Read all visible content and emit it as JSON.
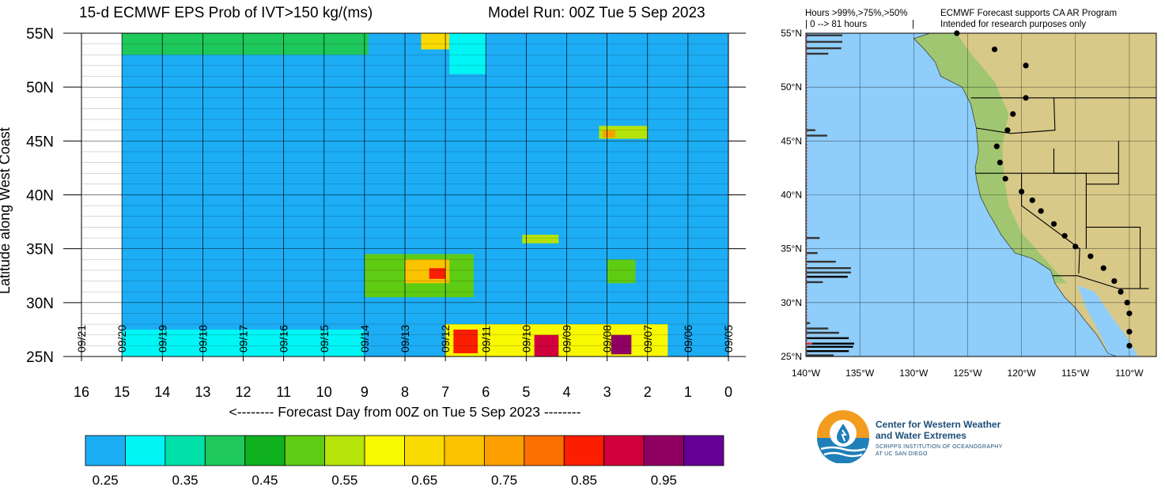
{
  "header": {
    "title_left": "15-d ECMWF EPS Prob of IVT>150 kg/(ms)",
    "title_right": "Model Run: 00Z Tue 5 Sep 2023"
  },
  "map_notes": {
    "hours_line1": "Hours >99%,>75%,>50%",
    "hours_line2": "| 0 --> 81 hours",
    "hours_bar": "|",
    "program_line1": "ECMWF Forecast supports CA AR Program",
    "program_line2": "Intended for research purposes only"
  },
  "logo": {
    "line1": "Center for Western Weather",
    "line2": "and Water Extremes",
    "line3": "SCRIPPS INSTITUTION OF OCEANOGRAPHY",
    "line4": "AT UC SAN DIEGO",
    "colors": {
      "orange": "#f39c1f",
      "blue": "#1f7fb8",
      "navy": "#1b4f7a"
    }
  },
  "colors": {
    "background_field": "#1cadf5",
    "ocean": "#8fcdfa",
    "land": "#d8c989"
  },
  "chart_data": [
    {
      "type": "heatmap",
      "title": "15-d ECMWF EPS Prob of IVT>150 kg/(ms)",
      "subtitle": "Model Run: 00Z Tue 5 Sep 2023",
      "xlabel": "<-------- Forecast Day from 00Z on Tue 5 Sep 2023 --------",
      "ylabel": "Latitude along West Coast",
      "x_reversed": true,
      "xlim": [
        0,
        16
      ],
      "ylim": [
        25,
        55
      ],
      "x_ticks": [
        "16",
        "15",
        "14",
        "13",
        "12",
        "11",
        "10",
        "9",
        "8",
        "7",
        "6",
        "5",
        "4",
        "3",
        "2",
        "1",
        "0"
      ],
      "y_ticks": [
        "25N",
        "30N",
        "35N",
        "40N",
        "45N",
        "50N",
        "55N"
      ],
      "date_labels": [
        {
          "day": 16,
          "label": "09/21"
        },
        {
          "day": 15,
          "label": "09/20"
        },
        {
          "day": 14,
          "label": "09/19"
        },
        {
          "day": 13,
          "label": "09/18"
        },
        {
          "day": 12,
          "label": "09/17"
        },
        {
          "day": 11,
          "label": "09/16"
        },
        {
          "day": 10,
          "label": "09/15"
        },
        {
          "day": 9,
          "label": "09/14"
        },
        {
          "day": 8,
          "label": "09/13"
        },
        {
          "day": 7,
          "label": "09/12"
        },
        {
          "day": 6,
          "label": "09/11"
        },
        {
          "day": 5,
          "label": "09/10"
        },
        {
          "day": 4,
          "label": "09/09"
        },
        {
          "day": 3,
          "label": "09/08"
        },
        {
          "day": 2,
          "label": "09/07"
        },
        {
          "day": 1,
          "label": "09/06"
        },
        {
          "day": 0,
          "label": "09/05"
        }
      ],
      "background_probability": 0.25,
      "grid": true,
      "patches": [
        {
          "name": "north-55N",
          "day_start": 8.9,
          "day_end": 15.0,
          "lat_start": 53.0,
          "lat_end": 55.0,
          "p": 0.42
        },
        {
          "name": "north-55N-core",
          "day_start": 6.9,
          "day_end": 7.6,
          "lat_start": 53.5,
          "lat_end": 55.0,
          "p": 0.68
        },
        {
          "name": "north-55N-tail",
          "day_start": 6.0,
          "day_end": 6.9,
          "lat_start": 51.2,
          "lat_end": 55.0,
          "p": 0.33
        },
        {
          "name": "mid-46N",
          "day_start": 2.0,
          "day_end": 3.2,
          "lat_start": 45.2,
          "lat_end": 46.4,
          "p": 0.55
        },
        {
          "name": "mid-46N-core",
          "day_start": 2.8,
          "day_end": 3.1,
          "lat_start": 45.3,
          "lat_end": 46.0,
          "p": 0.75
        },
        {
          "name": "lat-36N",
          "day_start": 4.2,
          "day_end": 5.1,
          "lat_start": 35.5,
          "lat_end": 36.3,
          "p": 0.55
        },
        {
          "name": "lat-33N",
          "day_start": 6.3,
          "day_end": 9.0,
          "lat_start": 30.5,
          "lat_end": 34.5,
          "p": 0.5
        },
        {
          "name": "lat-33N-core",
          "day_start": 6.9,
          "day_end": 8.0,
          "lat_start": 31.8,
          "lat_end": 34.0,
          "p": 0.72
        },
        {
          "name": "lat-33N-max",
          "day_start": 7.0,
          "day_end": 7.4,
          "lat_start": 32.2,
          "lat_end": 33.2,
          "p": 0.85
        },
        {
          "name": "lat-33N-east",
          "day_start": 2.3,
          "day_end": 3.0,
          "lat_start": 31.8,
          "lat_end": 34.0,
          "p": 0.5
        },
        {
          "name": "south-26N-west",
          "day_start": 9.0,
          "day_end": 15.0,
          "lat_start": 25.0,
          "lat_end": 27.5,
          "p": 0.32
        },
        {
          "name": "south-26N",
          "day_start": 1.5,
          "day_end": 7.0,
          "lat_start": 25.0,
          "lat_end": 28.0,
          "p": 0.62
        },
        {
          "name": "south-26N-a",
          "day_start": 6.2,
          "day_end": 6.8,
          "lat_start": 25.3,
          "lat_end": 27.5,
          "p": 0.85
        },
        {
          "name": "south-26N-b",
          "day_start": 4.2,
          "day_end": 4.8,
          "lat_start": 25.0,
          "lat_end": 27.0,
          "p": 0.9
        },
        {
          "name": "south-26N-c",
          "day_start": 2.4,
          "day_end": 2.9,
          "lat_start": 25.2,
          "lat_end": 27.0,
          "p": 0.98
        }
      ]
    },
    {
      "type": "table",
      "legend_type": "colorbar",
      "tick_labels": [
        "0.25",
        "0.35",
        "0.45",
        "0.55",
        "0.65",
        "0.75",
        "0.85",
        "0.95"
      ],
      "bins": [
        0.25,
        0.3,
        0.35,
        0.4,
        0.45,
        0.5,
        0.55,
        0.6,
        0.65,
        0.7,
        0.75,
        0.8,
        0.85,
        0.9,
        0.95,
        1.0
      ],
      "colors": [
        "#1cadf5",
        "#00f5f5",
        "#00e0a8",
        "#1ec85a",
        "#0eb01e",
        "#5fcc14",
        "#b5e30a",
        "#f8f800",
        "#fada00",
        "#fbc200",
        "#fba000",
        "#fb7000",
        "#fb1e00",
        "#d0003c",
        "#8f0062",
        "#640096"
      ]
    },
    {
      "type": "table",
      "legend_type": "map",
      "x_ticks": [
        "140°W",
        "135°W",
        "130°W",
        "125°W",
        "120°W",
        "115°W",
        "110°W"
      ],
      "y_ticks": [
        "25°N",
        "30°N",
        "35°N",
        "40°N",
        "45°N",
        "50°N",
        "55°N"
      ],
      "xlim": [
        -140,
        -107.5
      ],
      "ylim": [
        25,
        55
      ],
      "coast_points_deg": [
        [
          -126,
          55
        ],
        [
          -122.5,
          53.5
        ],
        [
          -119.6,
          52
        ],
        [
          -119.6,
          49
        ],
        [
          -120.8,
          47.5
        ],
        [
          -121.3,
          46
        ],
        [
          -122.3,
          44.5
        ],
        [
          -122,
          43
        ],
        [
          -121.5,
          41.5
        ],
        [
          -120,
          40.3
        ],
        [
          -119,
          39.5
        ],
        [
          -118.2,
          38.5
        ],
        [
          -117,
          37.3
        ],
        [
          -116,
          36.2
        ],
        [
          -115,
          35.2
        ],
        [
          -113.6,
          34.3
        ],
        [
          -112.4,
          33.2
        ],
        [
          -111.4,
          32
        ],
        [
          -110.8,
          31
        ],
        [
          -110.2,
          30
        ],
        [
          -110,
          29
        ],
        [
          -110,
          27.3
        ],
        [
          -110,
          26
        ]
      ],
      "hours_bars": [
        {
          "lat": 54.8,
          "len": 3.3,
          "c": "#333333"
        },
        {
          "lat": 54.2,
          "len": 3.3,
          "c": "#333333"
        },
        {
          "lat": 53.6,
          "len": 3.2,
          "c": "#333333"
        },
        {
          "lat": 53.1,
          "len": 2.0,
          "c": "#333333"
        },
        {
          "lat": 46.0,
          "len": 0.8,
          "c": "#333333"
        },
        {
          "lat": 45.5,
          "len": 1.9,
          "c": "#333333"
        },
        {
          "lat": 36.0,
          "len": 1.2,
          "c": "#333333"
        },
        {
          "lat": 34.6,
          "len": 1.0,
          "c": "#333333"
        },
        {
          "lat": 33.8,
          "len": 2.7,
          "c": "#333333"
        },
        {
          "lat": 33.2,
          "len": 4.1,
          "c": "#333333"
        },
        {
          "lat": 32.8,
          "len": 4.1,
          "c": "#333333"
        },
        {
          "lat": 32.4,
          "len": 3.8,
          "c": "#000000"
        },
        {
          "lat": 31.9,
          "len": 1.5,
          "c": "#333333"
        },
        {
          "lat": 28.1,
          "len": 0.3,
          "c": "#333333"
        },
        {
          "lat": 27.6,
          "len": 2.0,
          "c": "#333333"
        },
        {
          "lat": 27.2,
          "len": 3.0,
          "c": "#333333"
        },
        {
          "lat": 26.7,
          "len": 3.9,
          "c": "#000000"
        },
        {
          "lat": 26.2,
          "len": 4.4,
          "c": "#000000"
        },
        {
          "lat": 25.9,
          "len": 4.3,
          "c": "#000000"
        },
        {
          "lat": 25.5,
          "len": 3.9,
          "c": "#000000"
        },
        {
          "lat": 25.1,
          "len": 2.5,
          "c": "#333333"
        }
      ]
    }
  ]
}
